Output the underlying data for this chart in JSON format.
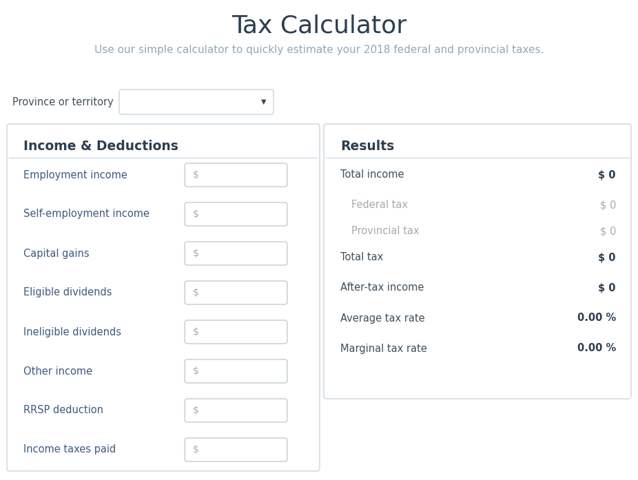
{
  "title": "Tax Calculator",
  "subtitle": "Use our simple calculator to quickly estimate your 2018 federal and provincial taxes.",
  "province_label": "Province or territory",
  "left_panel_title": "Income & Deductions",
  "left_fields": [
    "Employment income",
    "Self-employment income",
    "Capital gains",
    "Eligible dividends",
    "Ineligible dividends",
    "Other income",
    "RRSP deduction",
    "Income taxes paid"
  ],
  "left_field_colors": [
    "#3d5a80",
    "#3d5a80",
    "#3d5a80",
    "#3d5a80",
    "#3d5a80",
    "#3d5a80",
    "#3d5a80",
    "#3d5a80"
  ],
  "right_panel_title": "Results",
  "right_rows": [
    {
      "label": "Total income",
      "value": "$ 0",
      "label_color": "#3d4f5c",
      "value_bold": true,
      "indent": false
    },
    {
      "label": "Federal tax",
      "value": "$ 0",
      "label_color": "#aaaaaa",
      "value_bold": false,
      "indent": true
    },
    {
      "label": "Provincial tax",
      "value": "$ 0",
      "label_color": "#aaaaaa",
      "value_bold": false,
      "indent": true
    },
    {
      "label": "Total tax",
      "value": "$ 0",
      "label_color": "#3d4f5c",
      "value_bold": true,
      "indent": false
    },
    {
      "label": "After-tax income",
      "value": "$ 0",
      "label_color": "#3d4f5c",
      "value_bold": true,
      "indent": false
    },
    {
      "label": "Average tax rate",
      "value": "0.00 %",
      "label_color": "#3d4f5c",
      "value_bold": true,
      "indent": false
    },
    {
      "label": "Marginal tax rate",
      "value": "0.00 %",
      "label_color": "#3d4f5c",
      "value_bold": true,
      "indent": false
    }
  ],
  "bg_color": "#ffffff",
  "panel_bg": "#ffffff",
  "panel_border": "#c8d6df",
  "input_border": "#c0cdd5",
  "input_bg": "#ffffff",
  "title_color": "#2c3e50",
  "subtitle_color": "#8fa8b8",
  "left_panel_title_color": "#2c3e50",
  "right_panel_title_color": "#2c3e50",
  "province_label_color": "#3d4f5c",
  "dollar_sign_color": "#aaaaaa",
  "right_value_muted": "#aaaaaa",
  "right_value_bold_color": "#2c3e50"
}
